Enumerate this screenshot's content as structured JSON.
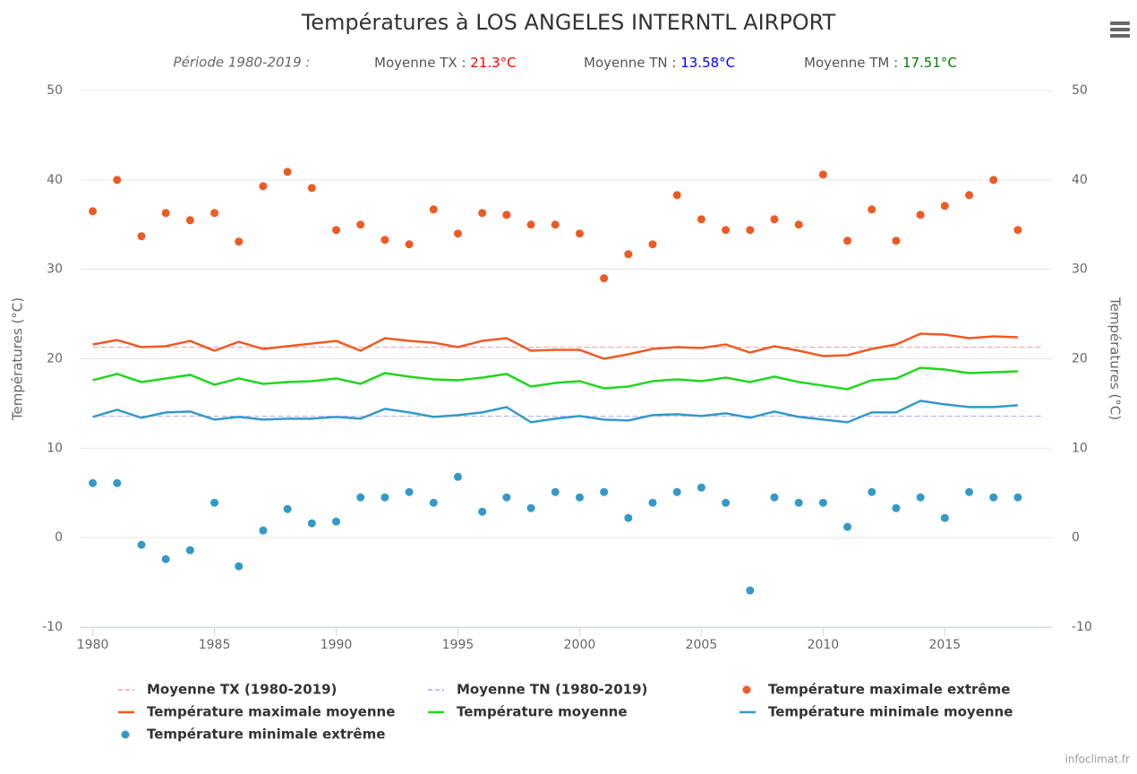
{
  "chart_data": {
    "type": "line",
    "title": "Températures à LOS ANGELES INTERNTL AIRPORT",
    "period": "Période 1980-2019 :",
    "means": [
      {
        "label": "Moyenne TX : ",
        "value": 21.3,
        "value_label": "21.3°C",
        "color": "#ff0000",
        "line_name": "Moyenne TX (1980-2019)",
        "line_color": "#f4a0a0"
      },
      {
        "label": "Moyenne TN : ",
        "value": 13.58,
        "value_label": "13.58°C",
        "color": "#0000ff",
        "line_name": "Moyenne TN (1980-2019)",
        "line_color": "#aaa4f0"
      },
      {
        "label": "Moyenne TM : ",
        "value": 17.51,
        "value_label": "17.51°C",
        "color": "#008000"
      }
    ],
    "x": [
      1980,
      1981,
      1982,
      1983,
      1984,
      1985,
      1986,
      1987,
      1988,
      1989,
      1990,
      1991,
      1992,
      1993,
      1994,
      1995,
      1996,
      1997,
      1998,
      1999,
      2000,
      2001,
      2002,
      2003,
      2004,
      2005,
      2006,
      2007,
      2008,
      2009,
      2010,
      2011,
      2012,
      2013,
      2014,
      2015,
      2016,
      2017,
      2018
    ],
    "series": [
      {
        "name": "Température maximale extrême",
        "kind": "scatter",
        "color": "#ee5a24",
        "values": [
          36.5,
          40.0,
          33.7,
          36.3,
          35.5,
          36.3,
          33.1,
          39.3,
          40.9,
          39.1,
          34.4,
          35.0,
          33.3,
          32.8,
          36.7,
          34.0,
          36.3,
          36.1,
          35.0,
          35.0,
          34.0,
          29.0,
          31.7,
          32.8,
          38.3,
          35.6,
          34.4,
          34.4,
          35.6,
          35.0,
          40.6,
          33.2,
          36.7,
          33.2,
          36.1,
          37.1,
          38.3,
          40.0,
          34.4
        ]
      },
      {
        "name": "Température maximale moyenne",
        "kind": "line",
        "color": "#ee5a24",
        "values": [
          21.6,
          22.1,
          21.3,
          21.4,
          22.0,
          20.9,
          21.9,
          21.1,
          21.4,
          21.7,
          22.0,
          20.9,
          22.3,
          22.0,
          21.8,
          21.3,
          22.0,
          22.3,
          20.9,
          21.0,
          21.0,
          20.0,
          20.5,
          21.1,
          21.3,
          21.2,
          21.6,
          20.7,
          21.4,
          20.9,
          20.3,
          20.4,
          21.1,
          21.6,
          22.8,
          22.7,
          22.3,
          22.5,
          22.4
        ]
      },
      {
        "name": "Température moyenne",
        "kind": "line",
        "color": "#1ed81e",
        "values": [
          17.6,
          18.3,
          17.4,
          17.8,
          18.2,
          17.1,
          17.8,
          17.2,
          17.4,
          17.5,
          17.8,
          17.2,
          18.4,
          18.0,
          17.7,
          17.6,
          17.9,
          18.3,
          16.9,
          17.3,
          17.5,
          16.7,
          16.9,
          17.5,
          17.7,
          17.5,
          17.9,
          17.4,
          18.0,
          17.4,
          17.0,
          16.6,
          17.6,
          17.8,
          19.0,
          18.8,
          18.4,
          18.5,
          18.6
        ]
      },
      {
        "name": "Température minimale moyenne",
        "kind": "line",
        "color": "#3499c8",
        "values": [
          13.5,
          14.3,
          13.4,
          14.0,
          14.1,
          13.2,
          13.5,
          13.2,
          13.3,
          13.3,
          13.5,
          13.3,
          14.4,
          14.0,
          13.5,
          13.7,
          14.0,
          14.6,
          12.9,
          13.3,
          13.6,
          13.2,
          13.1,
          13.7,
          13.8,
          13.6,
          13.9,
          13.4,
          14.1,
          13.5,
          13.2,
          12.9,
          14.0,
          14.0,
          15.3,
          14.9,
          14.6,
          14.6,
          14.8
        ]
      },
      {
        "name": "Température minimale extrême",
        "kind": "scatter",
        "color": "#3499c8",
        "values": [
          6.1,
          6.1,
          -0.8,
          -2.4,
          -1.4,
          3.9,
          -3.2,
          0.8,
          3.2,
          1.6,
          1.8,
          4.5,
          4.5,
          5.1,
          3.9,
          6.8,
          2.9,
          4.5,
          3.3,
          5.1,
          4.5,
          5.1,
          2.2,
          3.9,
          5.1,
          5.6,
          3.9,
          -5.9,
          4.5,
          3.9,
          3.9,
          1.2,
          5.1,
          3.3,
          4.5,
          2.2,
          5.1,
          4.5,
          4.5
        ]
      }
    ],
    "xlim": [
      1979.5,
      2019.4
    ],
    "xticks": [
      1980,
      1985,
      1990,
      1995,
      2000,
      2005,
      2010,
      2015
    ],
    "ylim": [
      -10,
      50
    ],
    "yticks": [
      -10,
      0,
      10,
      20,
      30,
      40,
      50
    ],
    "y2lim": [
      -10,
      50
    ],
    "y2ticks": [
      -10,
      0,
      10,
      20,
      30,
      40,
      50
    ],
    "y_label": "Températures (°C)",
    "y2_label": "Températures (°C)",
    "grid": true,
    "credit": "infoclimat.fr"
  }
}
